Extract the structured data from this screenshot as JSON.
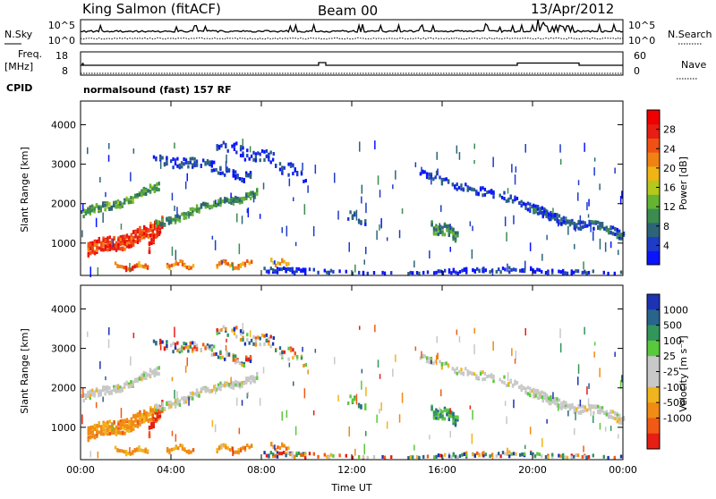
{
  "header": {
    "station": "King Salmon (fitACF)",
    "beam": "Beam 00",
    "date": "13/Apr/2012"
  },
  "status_panels": {
    "nsky_label": "N.Sky",
    "nsearch_label": "N.Search",
    "nsky_ticks": [
      "10^5",
      "10^0"
    ],
    "nsearch_ticks": [
      "10^5",
      "10^0"
    ],
    "freq_label_top": "Freq.",
    "freq_label_unit": "[MHz]",
    "freq_ticks": [
      "18",
      "8"
    ],
    "nave_label": "Nave",
    "nave_ticks": [
      "60",
      "0"
    ],
    "cpid_label": "CPID",
    "cpid_text": "normalsound (fast) 157 RF"
  },
  "chart_data": [
    {
      "type": "heatmap",
      "name": "power",
      "ylabel": "Slant Range [km]",
      "xlabel": "",
      "x_ticks": [
        "00:00",
        "04:00",
        "08:00",
        "12:00",
        "16:00",
        "20:00",
        "00:00"
      ],
      "x_range_hours": [
        0,
        24
      ],
      "y_ticks": [
        1000,
        2000,
        3000,
        4000
      ],
      "ylim": [
        180,
        4600
      ],
      "colorbar": {
        "label": "Power [dB]",
        "ticks": [
          4,
          8,
          12,
          16,
          20,
          24,
          28
        ],
        "range": [
          0,
          32
        ],
        "colors": [
          "#0a14ff",
          "#1e3cc8",
          "#2d6478",
          "#3c8c50",
          "#64b432",
          "#b4c81e",
          "#f0b414",
          "#f08214",
          "#f05014",
          "#e61e14",
          "#f00000"
        ]
      }
    },
    {
      "type": "heatmap",
      "name": "velocity",
      "ylabel": "Slant Range [km]",
      "xlabel": "Time UT",
      "x_ticks": [
        "00:00",
        "04:00",
        "08:00",
        "12:00",
        "16:00",
        "20:00",
        "00:00"
      ],
      "x_range_hours": [
        0,
        24
      ],
      "y_ticks": [
        1000,
        2000,
        3000,
        4000
      ],
      "ylim": [
        180,
        4600
      ],
      "colorbar": {
        "label": "Velocity [m s⁻¹]",
        "ticks": [
          "1000",
          "500",
          "100",
          "25",
          "-25",
          "-100",
          "-500",
          "-1000"
        ],
        "colors": [
          "#1e32b4",
          "#28648c",
          "#32965a",
          "#5ac83c",
          "#c8c8c8",
          "#c8c8c8",
          "#f0b41e",
          "#f08c14",
          "#f05a14",
          "#e61e14"
        ]
      }
    }
  ]
}
